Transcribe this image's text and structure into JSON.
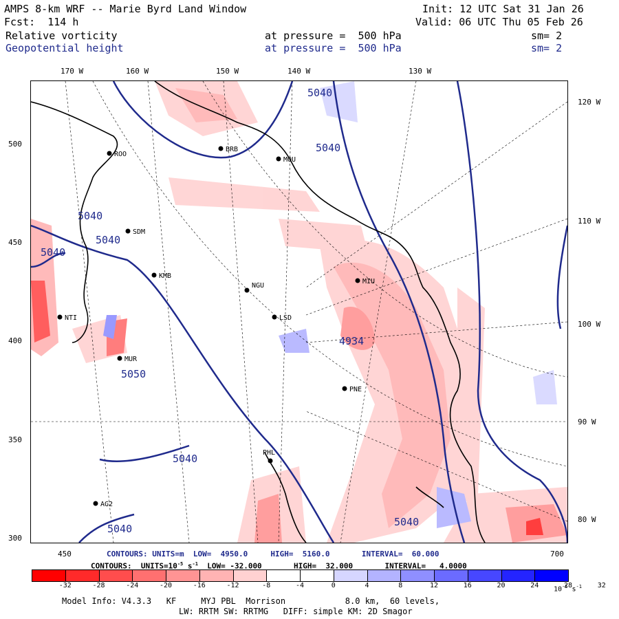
{
  "header": {
    "title": "AMPS 8-km WRF -- Marie Byrd Land Window",
    "init": "Init: 12 UTC Sat 31 Jan 26",
    "fcst": "Fcst:  114 h",
    "valid": "Valid: 06 UTC Thu 05 Feb 26",
    "field1": "Relative vorticity",
    "field1_level": "at pressure =  500 hPa",
    "field1_sm": "sm= 2",
    "field2": "Geopotential height",
    "field2_level": "at pressure =  500 hPa",
    "field2_sm": "sm= 2"
  },
  "axes": {
    "top_lon": [
      "170 W",
      "160 W",
      "150 W",
      "140 W",
      "130 W"
    ],
    "right_lon": [
      "120 W",
      "110 W",
      "100 W",
      "90 W",
      "80 W"
    ],
    "left_y": [
      "500",
      "450",
      "400",
      "350",
      "300"
    ],
    "bottom_x": [
      "450",
      "700"
    ]
  },
  "stations": [
    "ROO",
    "BRB",
    "MOU",
    "SDM",
    "KMB",
    "NGU",
    "LSD",
    "MIU",
    "PNE",
    "PHL",
    "AG2",
    "MUR",
    "NTI"
  ],
  "contour_labels": {
    "height": [
      "5040",
      "5040",
      "5040",
      "5040",
      "5050",
      "5040",
      "5040",
      "5040",
      "4934",
      "5040"
    ]
  },
  "contours_info": {
    "line1": "CONTOURS: UNITS=m  LOW=  4950.0     HIGH=  5160.0       INTERVAL=  60.000",
    "line2": "CONTOURS:  UNITS=10",
    "line2_exp": "-5",
    "line2_rest": " s",
    "line2_exp2": "-1",
    "line2_tail": "  LOW= -32.000       HIGH=  32.000       INTERVAL=   4.0000"
  },
  "colorbar": {
    "labels": [
      "-32",
      "-28",
      "-24",
      "-20",
      "-16",
      "-12",
      "-8",
      "-4",
      "0",
      "4",
      "8",
      "12",
      "16",
      "20",
      "24",
      "28",
      "32"
    ],
    "unit": "10",
    "unit_exp": "-5",
    "unit_rest": " s",
    "unit_exp2": "-1",
    "colors": [
      "#ff0000",
      "#ff2a2a",
      "#ff4d4d",
      "#ff7070",
      "#ff9494",
      "#ffb3b3",
      "#ffd1d1",
      "#ffffff",
      "#ffffff",
      "#d6d6ff",
      "#b3b3ff",
      "#8f8fff",
      "#6b6bff",
      "#4747ff",
      "#2424ff",
      "#0000ff"
    ]
  },
  "footer": {
    "line1": "Model Info: V4.3.3   KF     MYJ PBL  Morrison            8.0 km,  60 levels,",
    "line2": "LW: RRTM SW: RRTMG   DIFF: simple KM: 2D Smagor"
  }
}
